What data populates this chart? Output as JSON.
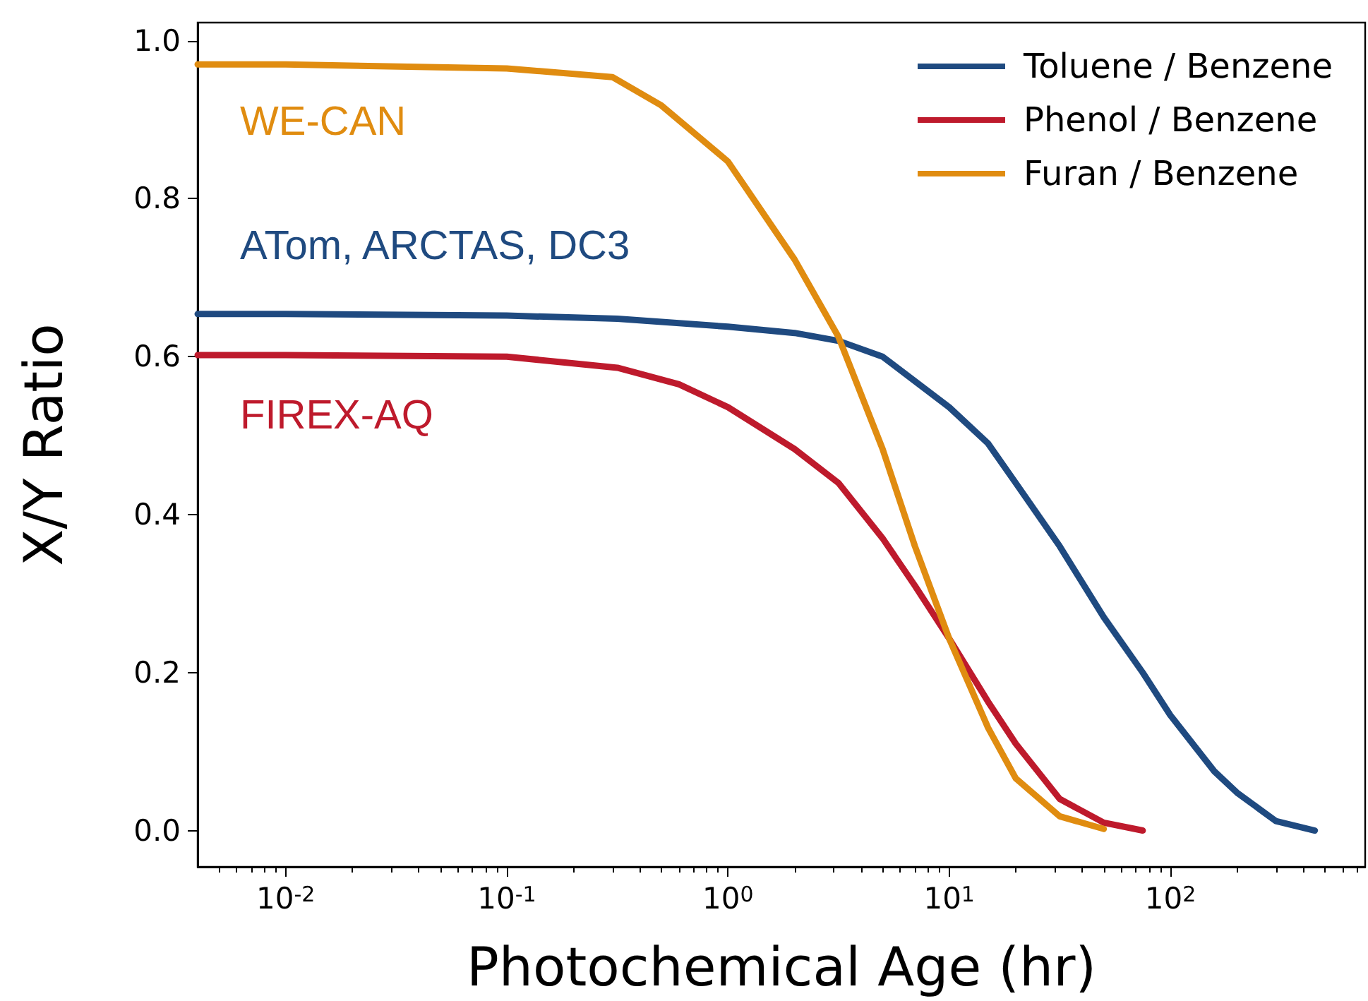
{
  "chart_data": {
    "type": "line",
    "xlabel": "Photochemical Age (hr)",
    "ylabel": "X/Y Ratio",
    "log": "x",
    "legend": "top right",
    "grid": false,
    "marker": "none",
    "line_style": "solid",
    "xlim": [
      0.004,
      760
    ],
    "ylim": [
      -0.046,
      1.023
    ],
    "xticks": [
      {
        "value": 0.01,
        "label": "10$^{-2}$"
      },
      {
        "value": 0.1,
        "label": "10$^{-1}$"
      },
      {
        "value": 1,
        "label": "10$^{0}$"
      },
      {
        "value": 10,
        "label": "10$^{1}$"
      },
      {
        "value": 100,
        "label": "10$^{2}$"
      }
    ],
    "yticks": [
      {
        "value": 0,
        "label": "0.0"
      },
      {
        "value": 0.2,
        "label": "0.2"
      },
      {
        "value": 0.4,
        "label": "0.4"
      },
      {
        "value": 0.6,
        "label": "0.6"
      },
      {
        "value": 0.8,
        "label": "0.8"
      },
      {
        "value": 1,
        "label": "1.0"
      }
    ],
    "series": [
      {
        "name": "Toluene / Benzene",
        "color": "#1f4a80",
        "x": [
          0.004,
          0.01,
          0.1,
          0.316,
          1,
          2,
          3.16,
          5,
          10,
          15,
          20,
          31.6,
          50,
          75,
          100,
          158,
          200,
          300,
          450
        ],
        "values": [
          0.654,
          0.654,
          0.652,
          0.648,
          0.638,
          0.63,
          0.62,
          0.6,
          0.536,
          0.49,
          0.44,
          0.36,
          0.27,
          0.2,
          0.146,
          0.075,
          0.048,
          0.012,
          0.0
        ]
      },
      {
        "name": "Phenol / Benzene",
        "color": "#be1a2c",
        "x": [
          0.004,
          0.01,
          0.1,
          0.316,
          0.6,
          1,
          2,
          3.16,
          5,
          7,
          10,
          15,
          20,
          31.6,
          50,
          75
        ],
        "values": [
          0.602,
          0.602,
          0.6,
          0.586,
          0.565,
          0.536,
          0.483,
          0.44,
          0.37,
          0.31,
          0.243,
          0.163,
          0.11,
          0.04,
          0.01,
          0.0
        ]
      },
      {
        "name": "Furan / Benzene",
        "color": "#e08c10",
        "x": [
          0.004,
          0.01,
          0.1,
          0.3,
          0.5,
          1,
          2,
          3.16,
          5,
          7,
          10,
          15,
          20,
          31.6,
          50
        ],
        "values": [
          0.97,
          0.97,
          0.965,
          0.954,
          0.918,
          0.847,
          0.723,
          0.625,
          0.483,
          0.36,
          0.243,
          0.13,
          0.066,
          0.018,
          0.002
        ]
      }
    ],
    "annotations": [
      "ATom, ARCTAS, DC3",
      "FIREX-AQ",
      "WE-CAN"
    ]
  }
}
